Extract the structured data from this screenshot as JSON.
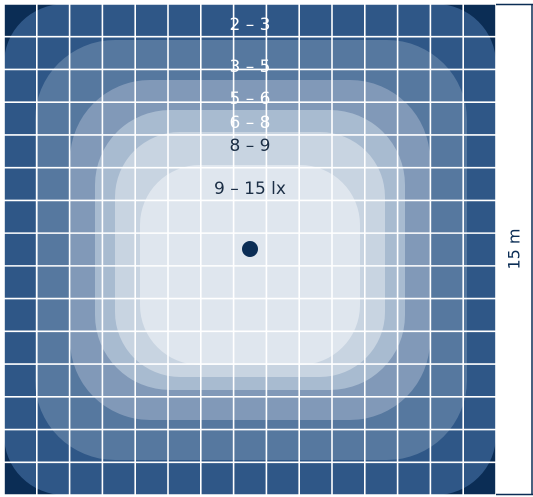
{
  "diagram": {
    "zone_labels": [
      {
        "text": "2 – 3",
        "color": "#ffffff"
      },
      {
        "text": "3 – 5",
        "color": "#ffffff"
      },
      {
        "text": "5 – 6",
        "color": "#ffffff"
      },
      {
        "text": "6 – 8",
        "color": "#ffffff"
      },
      {
        "text": "8 – 9",
        "color": "#1b2e45"
      },
      {
        "text": "9 – 15 lx",
        "color": "#1b2e45"
      }
    ],
    "dimension_label": "15 m",
    "colors": {
      "zone_darkest": "#0b2d55",
      "zone_1": "#2f5787",
      "zone_2": "#56789f",
      "zone_3": "#8199b8",
      "zone_4": "#a8bbd0",
      "zone_5": "#c8d4e1",
      "zone_6": "#dfe6ee",
      "grid_line": "#ffffff",
      "light_source": "#0b2d55",
      "dimension_line": "#0b2d55"
    },
    "light_source_icon": "lamp-position-dot"
  }
}
